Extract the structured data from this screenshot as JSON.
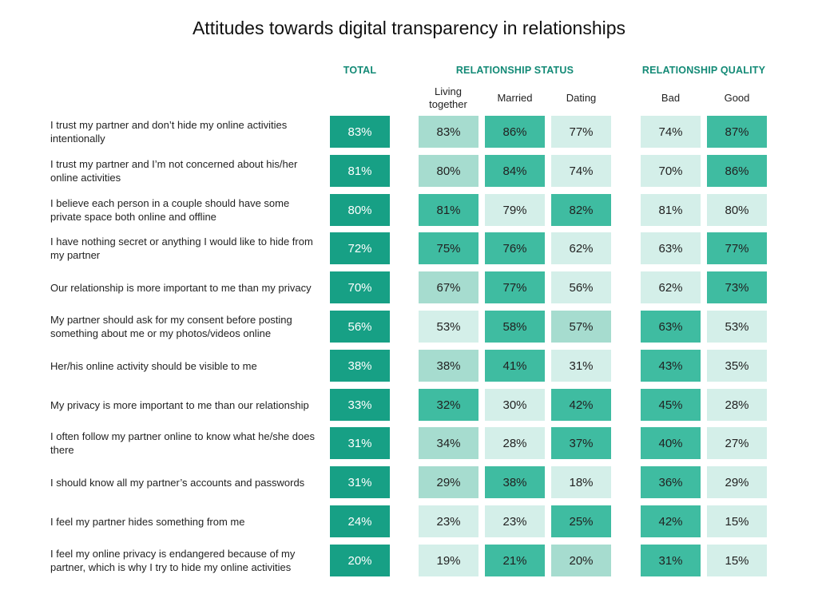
{
  "title": "Attitudes towards digital transparency in relationships",
  "colors": {
    "header_text": "#138a76",
    "level_1": "#d4efe9",
    "level_2": "#a6dccf",
    "level_3": "#3fbca1",
    "total": "#17a085"
  },
  "chart_data": {
    "type": "table",
    "groups": [
      {
        "name": "TOTAL",
        "columns": [
          ""
        ]
      },
      {
        "name": "RELATIONSHIP STATUS",
        "columns": [
          "Living together",
          "Married",
          "Dating"
        ]
      },
      {
        "name": "RELATIONSHIP QUALITY",
        "columns": [
          "Bad",
          "Good"
        ]
      }
    ],
    "columns": [
      "Total",
      "Living together",
      "Married",
      "Dating",
      "Bad",
      "Good"
    ],
    "rows": [
      {
        "label": "I trust my partner and don’t hide my online activities intentionally",
        "values": [
          "83%",
          "83%",
          "86%",
          "77%",
          "74%",
          "87%"
        ],
        "shades": [
          3,
          2,
          3,
          1,
          1,
          3
        ]
      },
      {
        "label": "I trust my partner and I’m not concerned about his/her online activities",
        "values": [
          "81%",
          "80%",
          "84%",
          "74%",
          "70%",
          "86%"
        ],
        "shades": [
          3,
          2,
          3,
          1,
          1,
          3
        ]
      },
      {
        "label": "I believe each person in a couple should have some private space both online and offline",
        "values": [
          "80%",
          "81%",
          "79%",
          "82%",
          "81%",
          "80%"
        ],
        "shades": [
          3,
          3,
          1,
          3,
          1,
          1
        ]
      },
      {
        "label": "I have nothing secret or anything I would like to hide from my partner",
        "values": [
          "72%",
          "75%",
          "76%",
          "62%",
          "63%",
          "77%"
        ],
        "shades": [
          3,
          3,
          3,
          1,
          1,
          3
        ]
      },
      {
        "label": "Our relationship is more important to me than my privacy",
        "values": [
          "70%",
          "67%",
          "77%",
          "56%",
          "62%",
          "73%"
        ],
        "shades": [
          3,
          2,
          3,
          1,
          1,
          3
        ]
      },
      {
        "label": "My partner should ask for my consent before posting something about me or my photos/videos online",
        "values": [
          "56%",
          "53%",
          "58%",
          "57%",
          "63%",
          "53%"
        ],
        "shades": [
          3,
          1,
          3,
          2,
          3,
          1
        ]
      },
      {
        "label": "Her/his online activity should be visible to me",
        "values": [
          "38%",
          "38%",
          "41%",
          "31%",
          "43%",
          "35%"
        ],
        "shades": [
          3,
          2,
          3,
          1,
          3,
          1
        ]
      },
      {
        "label": "My privacy is more important to me than our relationship",
        "values": [
          "33%",
          "32%",
          "30%",
          "42%",
          "45%",
          "28%"
        ],
        "shades": [
          3,
          3,
          1,
          3,
          3,
          1
        ]
      },
      {
        "label": "I often follow my partner online to know what he/she does there",
        "values": [
          "31%",
          "34%",
          "28%",
          "37%",
          "40%",
          "27%"
        ],
        "shades": [
          3,
          2,
          1,
          3,
          3,
          1
        ]
      },
      {
        "label": "I should know all my partner’s accounts and passwords",
        "values": [
          "31%",
          "29%",
          "38%",
          "18%",
          "36%",
          "29%"
        ],
        "shades": [
          3,
          2,
          3,
          1,
          3,
          1
        ]
      },
      {
        "label": "I feel my partner hides something from me",
        "values": [
          "24%",
          "23%",
          "23%",
          "25%",
          "42%",
          "15%"
        ],
        "shades": [
          3,
          1,
          1,
          3,
          3,
          1
        ]
      },
      {
        "label": "I feel my online privacy is endangered because of my partner, which is why I try to hide my online activities",
        "values": [
          "20%",
          "19%",
          "21%",
          "20%",
          "31%",
          "15%"
        ],
        "shades": [
          3,
          1,
          3,
          2,
          3,
          1
        ]
      }
    ]
  }
}
